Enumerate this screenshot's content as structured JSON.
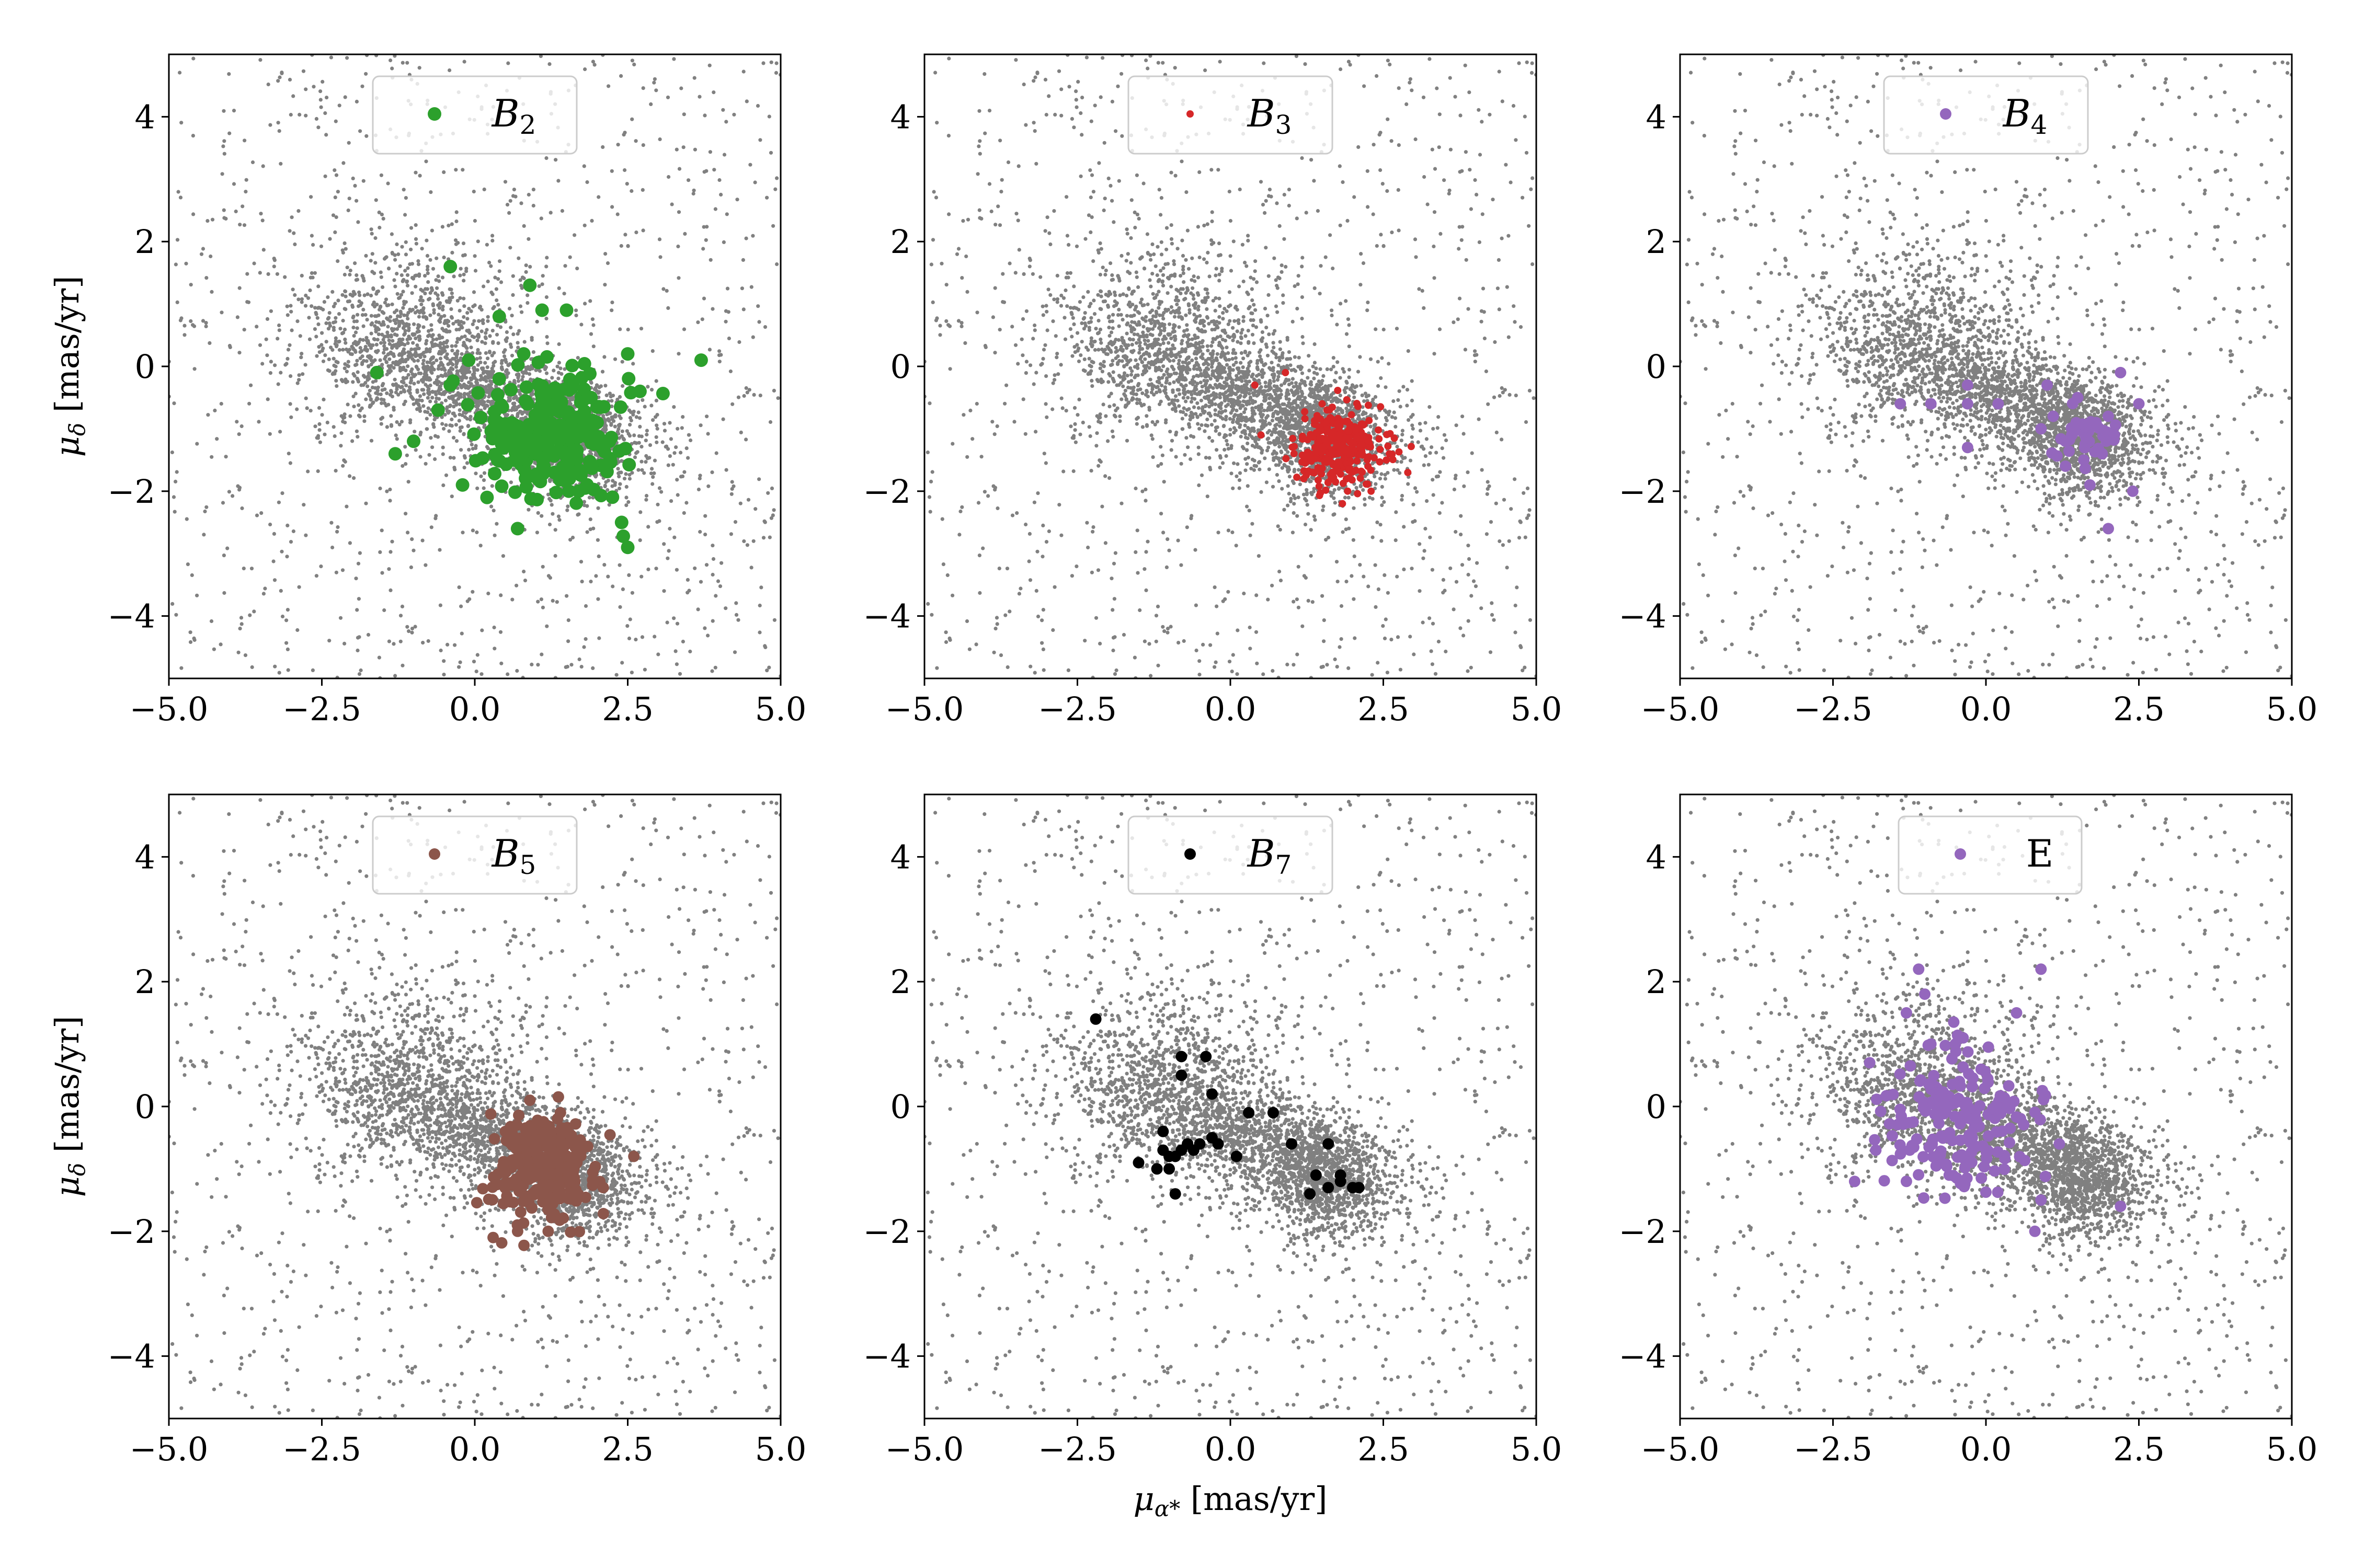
{
  "figure": {
    "shared_xlabel": "μα* [mas/yr]",
    "shared_ylabel": "μδ [mas/yr]"
  },
  "chart_data": [
    {
      "type": "scatter",
      "id": "B2",
      "legend": {
        "base": "B",
        "sub": "2",
        "color": "#2ca02c",
        "location": "upper center"
      },
      "xlim": [
        -5,
        5
      ],
      "ylim": [
        -5,
        5
      ],
      "xticks": [
        -5.0,
        -2.5,
        0.0,
        2.5,
        5.0
      ],
      "xtick_labels": [
        "−5.0",
        "−2.5",
        "0.0",
        "2.5",
        "5.0"
      ],
      "yticks": [
        -4,
        -2,
        0,
        2,
        4
      ],
      "ytick_labels": [
        "−4",
        "−2",
        "0",
        "2",
        "4"
      ],
      "ylabel": "μδ [mas/yr]",
      "xlabel": "",
      "highlight": {
        "color": "#2ca02c",
        "marker": "large",
        "points": [
          [
            -0.4,
            1.6
          ],
          [
            0.9,
            1.3
          ],
          [
            0.4,
            0.8
          ],
          [
            1.1,
            0.9
          ],
          [
            1.5,
            0.9
          ],
          [
            3.7,
            0.1
          ],
          [
            2.7,
            -0.4
          ],
          [
            2.5,
            -2.9
          ],
          [
            2.4,
            -2.5
          ],
          [
            0.7,
            -2.6
          ],
          [
            0.2,
            -2.1
          ],
          [
            -0.2,
            -1.9
          ],
          [
            -1.3,
            -1.4
          ],
          [
            -1.0,
            -1.2
          ],
          [
            -1.6,
            -0.1
          ],
          [
            -0.6,
            -0.7
          ],
          [
            0.4,
            -0.2
          ],
          [
            1.1,
            -0.6
          ],
          [
            1.5,
            -1.0
          ],
          [
            1.9,
            -0.5
          ],
          [
            2.2,
            -1.2
          ],
          [
            1.3,
            -1.7
          ],
          [
            1.7,
            -2.0
          ],
          [
            1.0,
            -1.4
          ],
          [
            2.5,
            0.2
          ],
          [
            -0.4,
            -0.3
          ],
          [
            -0.1,
            0.1
          ],
          [
            0.8,
            0.2
          ],
          [
            1.6,
            -0.3
          ],
          [
            2.0,
            -0.9
          ]
        ]
      },
      "cluster": {
        "center": [
          1.3,
          -1.1
        ],
        "spread": [
          0.6,
          0.5
        ],
        "count": 220
      }
    },
    {
      "type": "scatter",
      "id": "B3",
      "legend": {
        "base": "B",
        "sub": "3",
        "color": "#d62728",
        "location": "upper center"
      },
      "xlim": [
        -5,
        5
      ],
      "ylim": [
        -5,
        5
      ],
      "xticks": [
        -5.0,
        -2.5,
        0.0,
        2.5,
        5.0
      ],
      "xtick_labels": [
        "−5.0",
        "−2.5",
        "0.0",
        "2.5",
        "5.0"
      ],
      "yticks": [
        -4,
        -2,
        0,
        2,
        4
      ],
      "ytick_labels": [
        "−4",
        "−2",
        "0",
        "2",
        "4"
      ],
      "ylabel": "",
      "xlabel": "",
      "highlight": {
        "color": "#d62728",
        "marker": "small",
        "points": [
          [
            0.9,
            -0.1
          ],
          [
            0.4,
            -0.3
          ],
          [
            0.5,
            -1.1
          ],
          [
            2.6,
            -1.4
          ],
          [
            2.9,
            -1.7
          ],
          [
            1.2,
            -1.8
          ],
          [
            2.3,
            -2.0
          ],
          [
            1.5,
            -0.6
          ]
        ]
      },
      "cluster": {
        "center": [
          1.8,
          -1.3
        ],
        "spread": [
          0.35,
          0.3
        ],
        "count": 300
      }
    },
    {
      "type": "scatter",
      "id": "B4",
      "legend": {
        "base": "B",
        "sub": "4",
        "color": "#9467bd",
        "location": "upper center"
      },
      "xlim": [
        -5,
        5
      ],
      "ylim": [
        -5,
        5
      ],
      "xticks": [
        -5.0,
        -2.5,
        0.0,
        2.5,
        5.0
      ],
      "xtick_labels": [
        "−5.0",
        "−2.5",
        "0.0",
        "2.5",
        "5.0"
      ],
      "yticks": [
        -4,
        -2,
        0,
        2,
        4
      ],
      "ytick_labels": [
        "−4",
        "−2",
        "0",
        "2",
        "4"
      ],
      "ylabel": "",
      "xlabel": "",
      "highlight": {
        "color": "#9467bd",
        "marker": "medium",
        "points": [
          [
            -1.4,
            -0.6
          ],
          [
            -0.9,
            -0.6
          ],
          [
            -0.3,
            -0.3
          ],
          [
            -0.3,
            -0.6
          ],
          [
            0.2,
            -0.6
          ],
          [
            -0.3,
            -1.3
          ],
          [
            1.0,
            -0.3
          ],
          [
            2.2,
            -0.1
          ],
          [
            2.5,
            -0.6
          ],
          [
            2.4,
            -2.0
          ],
          [
            2.0,
            -2.6
          ],
          [
            1.3,
            -1.6
          ],
          [
            1.7,
            -1.9
          ],
          [
            0.9,
            -1.0
          ],
          [
            1.5,
            -0.5
          ],
          [
            2.1,
            -1.1
          ],
          [
            1.8,
            -0.9
          ],
          [
            1.3,
            -1.2
          ],
          [
            1.6,
            -1.5
          ],
          [
            2.0,
            -0.8
          ],
          [
            1.1,
            -0.8
          ],
          [
            1.9,
            -1.4
          ]
        ]
      },
      "cluster": {
        "center": [
          1.6,
          -1.1
        ],
        "spread": [
          0.3,
          0.3
        ],
        "count": 30
      }
    },
    {
      "type": "scatter",
      "id": "B5",
      "legend": {
        "base": "B",
        "sub": "5",
        "color": "#8c564b",
        "location": "upper center"
      },
      "xlim": [
        -5,
        5
      ],
      "ylim": [
        -5,
        5
      ],
      "xticks": [
        -5.0,
        -2.5,
        0.0,
        2.5,
        5.0
      ],
      "xtick_labels": [
        "−5.0",
        "−2.5",
        "0.0",
        "2.5",
        "5.0"
      ],
      "yticks": [
        -4,
        -2,
        0,
        2,
        4
      ],
      "ytick_labels": [
        "−4",
        "−2",
        "0",
        "2",
        "4"
      ],
      "ylabel": "μδ [mas/yr]",
      "xlabel": "",
      "highlight": {
        "color": "#8c564b",
        "marker": "medium",
        "points": [
          [
            0.3,
            -2.1
          ],
          [
            0.7,
            -2.0
          ],
          [
            1.2,
            -2.0
          ],
          [
            2.1,
            -1.3
          ],
          [
            2.6,
            -0.8
          ],
          [
            1.4,
            -0.1
          ],
          [
            0.9,
            0.1
          ],
          [
            0.5,
            -0.4
          ]
        ]
      },
      "cluster": {
        "center": [
          1.1,
          -1.0
        ],
        "spread": [
          0.4,
          0.45
        ],
        "count": 260
      }
    },
    {
      "type": "scatter",
      "id": "B7",
      "legend": {
        "base": "B",
        "sub": "7",
        "color": "#000000",
        "location": "upper center"
      },
      "xlim": [
        -5,
        5
      ],
      "ylim": [
        -5,
        5
      ],
      "xticks": [
        -5.0,
        -2.5,
        0.0,
        2.5,
        5.0
      ],
      "xtick_labels": [
        "−5.0",
        "−2.5",
        "0.0",
        "2.5",
        "5.0"
      ],
      "yticks": [
        -4,
        -2,
        0,
        2,
        4
      ],
      "ytick_labels": [
        "−4",
        "−2",
        "0",
        "2",
        "4"
      ],
      "ylabel": "",
      "xlabel": "μα* [mas/yr]",
      "highlight": {
        "color": "#000000",
        "marker": "medium",
        "points": [
          [
            -2.2,
            1.4
          ],
          [
            -0.8,
            0.8
          ],
          [
            -0.4,
            0.8
          ],
          [
            -0.8,
            0.5
          ],
          [
            -0.3,
            0.2
          ],
          [
            -1.1,
            -0.4
          ],
          [
            -0.7,
            -0.6
          ],
          [
            -1.5,
            -0.9
          ],
          [
            -1.2,
            -1.0
          ],
          [
            -1.0,
            -1.0
          ],
          [
            -0.9,
            -0.8
          ],
          [
            -0.8,
            -0.7
          ],
          [
            -0.6,
            -0.7
          ],
          [
            -0.5,
            -0.6
          ],
          [
            -1.0,
            -0.8
          ],
          [
            -0.9,
            -1.4
          ],
          [
            -1.1,
            -0.7
          ],
          [
            0.3,
            -0.1
          ],
          [
            0.7,
            -0.1
          ],
          [
            -0.3,
            -0.5
          ],
          [
            -0.2,
            -0.6
          ],
          [
            0.1,
            -0.8
          ],
          [
            1.0,
            -0.6
          ],
          [
            1.4,
            -1.1
          ],
          [
            1.6,
            -1.3
          ],
          [
            1.8,
            -1.1
          ],
          [
            1.8,
            -1.2
          ],
          [
            1.3,
            -1.4
          ],
          [
            2.0,
            -1.3
          ],
          [
            2.1,
            -1.3
          ],
          [
            1.6,
            -0.6
          ]
        ]
      },
      "cluster": {
        "center": [
          0,
          0
        ],
        "spread": [
          0,
          0
        ],
        "count": 0
      }
    },
    {
      "type": "scatter",
      "id": "E",
      "legend": {
        "base": "E",
        "sub": "",
        "color": "#9467bd",
        "location": "upper center"
      },
      "xlim": [
        -5,
        5
      ],
      "ylim": [
        -5,
        5
      ],
      "xticks": [
        -5.0,
        -2.5,
        0.0,
        2.5,
        5.0
      ],
      "xtick_labels": [
        "−5.0",
        "−2.5",
        "0.0",
        "2.5",
        "5.0"
      ],
      "yticks": [
        -4,
        -2,
        0,
        2,
        4
      ],
      "ytick_labels": [
        "−4",
        "−2",
        "0",
        "2",
        "4"
      ],
      "ylabel": "",
      "xlabel": "",
      "highlight": {
        "color": "#9467bd",
        "marker": "medium",
        "points": [
          [
            -1.1,
            2.2
          ],
          [
            -1.0,
            1.8
          ],
          [
            0.9,
            2.2
          ],
          [
            -1.3,
            1.5
          ],
          [
            0.5,
            1.5
          ],
          [
            -1.9,
            0.7
          ],
          [
            -1.3,
            -1.2
          ],
          [
            -0.6,
            -1.1
          ],
          [
            0.9,
            -1.5
          ],
          [
            0.8,
            -2.0
          ],
          [
            2.2,
            -1.6
          ],
          [
            1.2,
            -0.6
          ],
          [
            -1.8,
            -0.7
          ],
          [
            -0.9,
            1.0
          ],
          [
            -0.5,
            1.0
          ]
        ]
      },
      "cluster": {
        "center": [
          -0.4,
          -0.2
        ],
        "spread": [
          0.55,
          0.55
        ],
        "count": 180
      }
    }
  ]
}
